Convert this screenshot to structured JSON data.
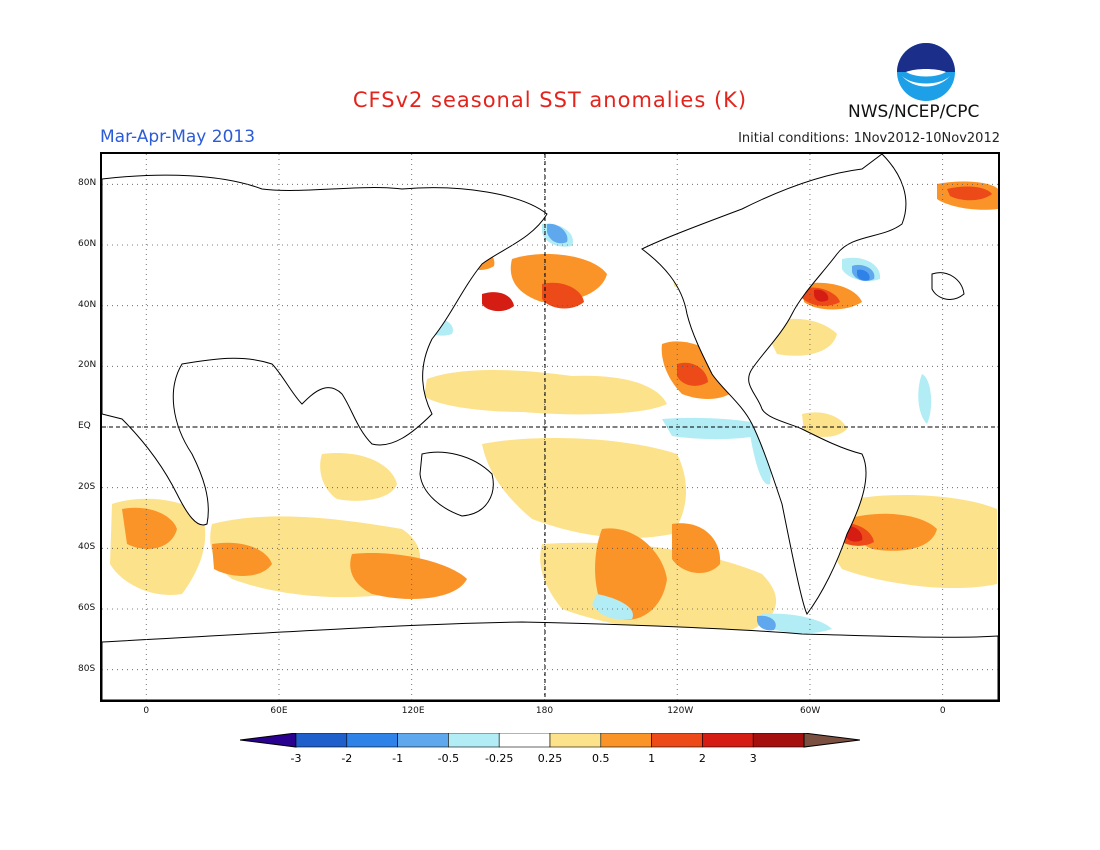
{
  "header": {
    "title": "CFSv2 seasonal SST anomalies (K)",
    "season": "Mar-Apr-May 2013",
    "initial_conditions": "Initial conditions: 1Nov2012-10Nov2012",
    "agency": "NWS/NCEP/CPC",
    "logo_text": "NOAA"
  },
  "map": {
    "lat_ticks": [
      "80N",
      "60N",
      "40N",
      "20N",
      "EQ",
      "20S",
      "40S",
      "60S",
      "80S"
    ],
    "lon_ticks": [
      "0",
      "60E",
      "120E",
      "180",
      "120W",
      "60W",
      "0"
    ],
    "lat_range": [
      -90,
      90
    ],
    "lon_range": [
      -20,
      385
    ],
    "grid": true
  },
  "legend": {
    "labels": [
      "-3",
      "-2",
      "-1",
      "-0.5",
      "-0.25",
      "0.25",
      "0.5",
      "1",
      "2",
      "3"
    ],
    "colors": [
      "#2a0090",
      "#1e5fcc",
      "#2f82e8",
      "#5fa8ee",
      "#b2ecf5",
      "#ffffff",
      "#fde28c",
      "#fb9428",
      "#ec4a18",
      "#d51d14",
      "#a50f0d",
      "#7c5040"
    ]
  },
  "anomaly_colors": {
    "weak_cold": "#b2ecf5",
    "cold": "#5fa8ee",
    "strong_cold": "#2f82e8",
    "weak_warm": "#fde28c",
    "warm": "#fb9428",
    "strong_warm": "#ec4a18",
    "very_strong_warm": "#d51d14"
  }
}
